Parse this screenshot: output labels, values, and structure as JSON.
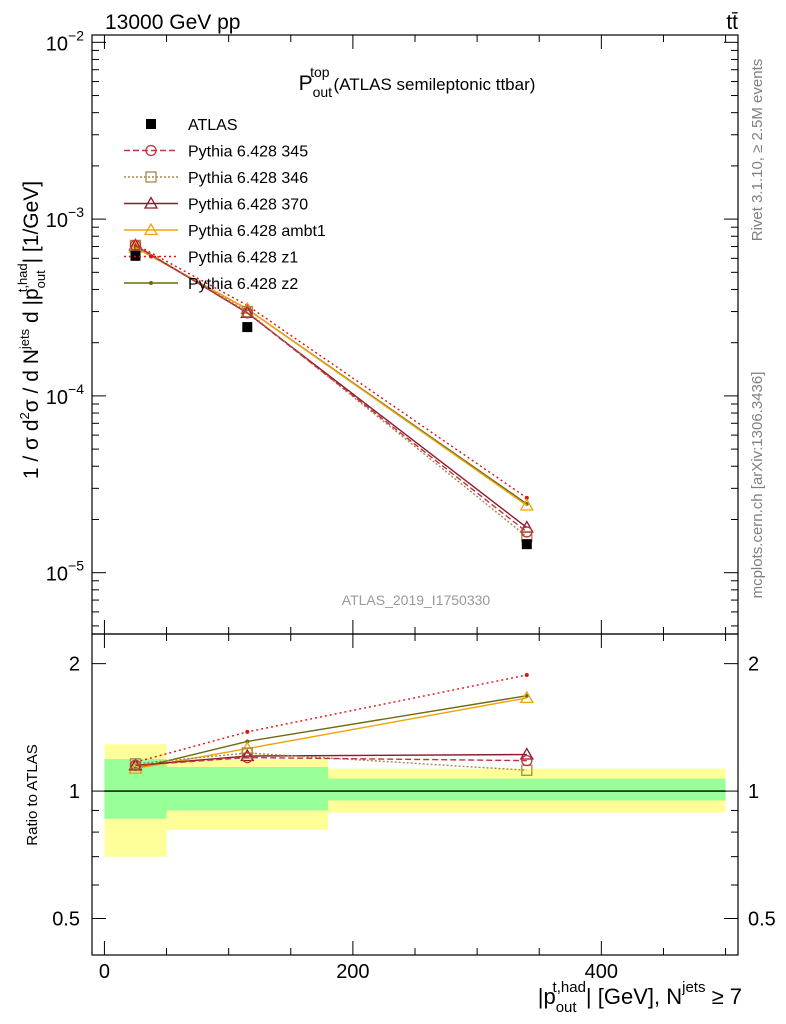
{
  "header": {
    "left": "13000 GeV pp",
    "right": "tt̄"
  },
  "side_labels": {
    "rivet": "Rivet 3.1.10, ≥ 2.5M events",
    "mcplots": "mcplots.cern.ch [arXiv:1306.3436]"
  },
  "watermark": "ATLAS_2019_I1750330",
  "colors": {
    "atlas": "#000000",
    "p345": "#c4323f",
    "p346": "#a6874a",
    "p370": "#8b1a2c",
    "ambt1": "#f0a30a",
    "z1": "#e0120e",
    "z2": "#6b6b14",
    "band_stat": "#99ff99",
    "band_tot": "#ffff99"
  },
  "chart_data": [
    {
      "type": "line",
      "title": "P_out^top (ATLAS semileptonic ttbar)",
      "title_main": "P",
      "title_sup": "top",
      "title_sub": "out",
      "title_rest": "(ATLAS semileptonic ttbar)",
      "ylabel": "1 / σ d²σ / d N^jets d |p_out^t,had| [1/GeV]",
      "yscale": "log",
      "ylim": [
        4.5e-06,
        0.011
      ],
      "xlim": [
        -10,
        510
      ],
      "yticks": [
        {
          "value": 1e-05,
          "base": "10",
          "exp": "−5"
        },
        {
          "value": 0.0001,
          "base": "10",
          "exp": "−4"
        },
        {
          "value": 0.001,
          "base": "10",
          "exp": "−3"
        },
        {
          "value": 0.01,
          "base": "10",
          "exp": "−2"
        }
      ],
      "legend_position": "top-left",
      "x": [
        25,
        115,
        340
      ],
      "bin_edges": [
        0,
        50,
        180,
        500
      ],
      "series": [
        {
          "key": "atlas",
          "name": "ATLAS",
          "values": [
            0.00062,
            0.000245,
            1.45e-05
          ],
          "marker": "square-filled",
          "dash": "none"
        },
        {
          "key": "p345",
          "name": "Pythia 6.428 345",
          "values": [
            0.00071,
            0.000295,
            1.7e-05
          ],
          "marker": "circle-open",
          "dash": "6,3"
        },
        {
          "key": "p346",
          "name": "Pythia 6.428 346",
          "values": [
            0.00071,
            0.0003,
            1.6e-05
          ],
          "marker": "square-open",
          "dash": "2,2"
        },
        {
          "key": "p370",
          "name": "Pythia 6.428 370",
          "values": [
            0.00071,
            0.000295,
            1.8e-05
          ],
          "marker": "triangle-open",
          "dash": "none"
        },
        {
          "key": "ambt1",
          "name": "Pythia 6.428 ambt1",
          "values": [
            0.00069,
            0.00031,
            2.4e-05
          ],
          "marker": "triangle-open",
          "dash": "none"
        },
        {
          "key": "z1",
          "name": "Pythia 6.428 z1",
          "values": [
            0.00072,
            0.000325,
            2.65e-05
          ],
          "marker": "dot",
          "dash": "2,3"
        },
        {
          "key": "z2",
          "name": "Pythia 6.428 z2",
          "values": [
            0.00069,
            0.00031,
            2.45e-05
          ],
          "marker": "dot",
          "dash": "none"
        }
      ]
    },
    {
      "type": "line",
      "ylabel": "Ratio to ATLAS",
      "yscale": "log",
      "ylim": [
        0.41,
        2.35
      ],
      "yticks": [
        {
          "value": 0.5,
          "label": "0.5"
        },
        {
          "value": 1,
          "label": "1"
        },
        {
          "value": 2,
          "label": "2"
        }
      ],
      "xticks": [
        {
          "value": 0,
          "label": "0"
        },
        {
          "value": 200,
          "label": "200"
        },
        {
          "value": 400,
          "label": "400"
        }
      ],
      "xlabel": "|p_out^t,had| [GeV], N^jets ≥ 7",
      "xlabel_p": "|p",
      "xlabel_sup": "t,had",
      "xlabel_sub": "out",
      "xlabel_mid": "| [GeV], N",
      "xlabel_sup2": "jets",
      "xlabel_end": " ≥ 7",
      "x": [
        25,
        115,
        340
      ],
      "bands": {
        "stat": [
          [
            0.86,
            1.19
          ],
          [
            0.9,
            1.14
          ],
          [
            0.95,
            1.07
          ]
        ],
        "total": [
          [
            0.7,
            1.29
          ],
          [
            0.81,
            1.19
          ],
          [
            0.89,
            1.13
          ]
        ]
      },
      "series": [
        {
          "key": "p345",
          "values": [
            1.15,
            1.2,
            1.18
          ]
        },
        {
          "key": "p346",
          "values": [
            1.16,
            1.23,
            1.12
          ]
        },
        {
          "key": "p370",
          "values": [
            1.15,
            1.21,
            1.22
          ]
        },
        {
          "key": "ambt1",
          "values": [
            1.13,
            1.26,
            1.66
          ]
        },
        {
          "key": "z1",
          "values": [
            1.17,
            1.38,
            1.88
          ]
        },
        {
          "key": "z2",
          "values": [
            1.13,
            1.31,
            1.68
          ]
        }
      ]
    }
  ]
}
